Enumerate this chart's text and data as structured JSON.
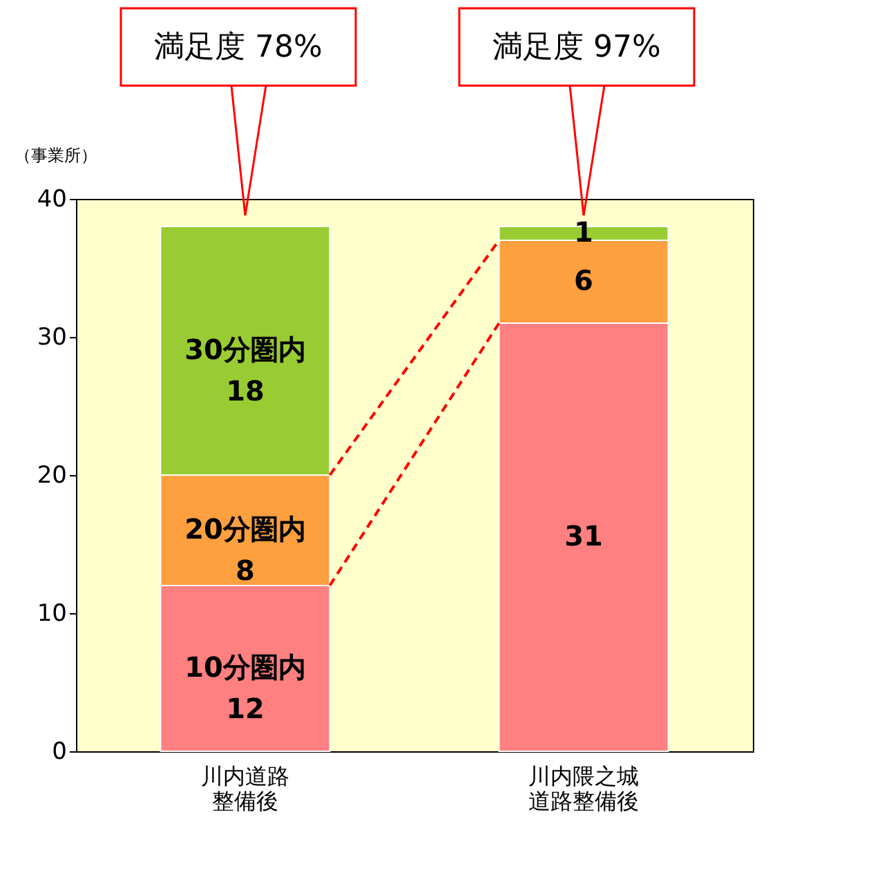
{
  "chart_data": {
    "type": "bar",
    "stacked": true,
    "ylabel": "（事業所）",
    "categories": [
      "川内道路整備後",
      "川内隈之城道路整備後"
    ],
    "series": [
      {
        "name": "10分圏内",
        "color": "#ff8080",
        "values": [
          12,
          31
        ]
      },
      {
        "name": "20分圏内",
        "color": "#ffa040",
        "values": [
          8,
          6
        ]
      },
      {
        "name": "30分圏内",
        "color": "#99cc33",
        "values": [
          18,
          1
        ]
      }
    ],
    "ylim": [
      0,
      40
    ],
    "yticks": [
      0,
      10,
      20,
      30,
      40
    ],
    "grid": false,
    "legend": false,
    "data_labels": true,
    "annotations": [
      "満足度 78%",
      "満足度 97%"
    ]
  }
}
